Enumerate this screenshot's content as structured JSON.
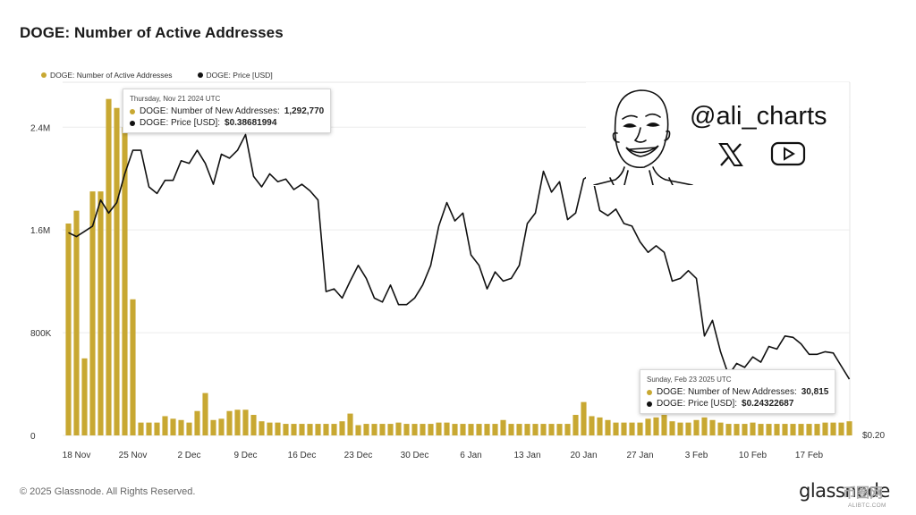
{
  "title": "DOGE: Number of Active Addresses",
  "legend": {
    "series1": "DOGE: Number of Active Addresses",
    "series2": "DOGE: Price [USD]",
    "color1": "#c8a832",
    "color2": "#111111"
  },
  "tooltip1": {
    "date": "Thursday, Nov 21 2024 UTC",
    "label1": "DOGE: Number of New Addresses:",
    "value1": "1,292,770",
    "label2": "DOGE: Price [USD]:",
    "value2": "$0.38681994"
  },
  "tooltip2": {
    "date": "Sunday, Feb 23 2025 UTC",
    "label1": "DOGE: Number of New Addresses:",
    "value1": "30,815",
    "label2": "DOGE: Price [USD]:",
    "value2": "$0.24322687"
  },
  "overlay": {
    "handle": "@ali_charts",
    "icons": [
      "caricature-face",
      "x-logo-icon",
      "youtube-icon"
    ]
  },
  "footer": {
    "copyright": "© 2025 Glassnode. All Rights Reserved.",
    "logo": "glassnode",
    "watermark": "币圈网",
    "watermark_url": "ALIBTC.COM"
  },
  "chart_data": {
    "type": "bar",
    "x_tick_labels": [
      "18 Nov",
      "25 Nov",
      "2 Dec",
      "9 Dec",
      "16 Dec",
      "23 Dec",
      "30 Dec",
      "6 Jan",
      "13 Jan",
      "20 Jan",
      "27 Jan",
      "3 Feb",
      "10 Feb",
      "17 Feb"
    ],
    "y_tick_labels": [
      "0",
      "800K",
      "1.6M",
      "2.4M"
    ],
    "y_ticks": [
      0,
      800000,
      1600000,
      2400000
    ],
    "ylim": [
      0,
      2750000
    ],
    "right_axis_label": "$0.20",
    "legend_position": "top-left",
    "grid": "horizontal",
    "bar_series": {
      "name": "DOGE: Number of Active Addresses",
      "values": [
        1650000,
        1750000,
        600000,
        1900000,
        1900000,
        2620000,
        2550000,
        2400000,
        1060000,
        100000,
        100000,
        100000,
        150000,
        130000,
        120000,
        100000,
        190000,
        330000,
        120000,
        130000,
        190000,
        200000,
        200000,
        160000,
        110000,
        100000,
        100000,
        90000,
        90000,
        90000,
        90000,
        90000,
        90000,
        90000,
        110000,
        170000,
        80000,
        90000,
        90000,
        90000,
        90000,
        100000,
        90000,
        90000,
        90000,
        90000,
        100000,
        100000,
        90000,
        90000,
        90000,
        90000,
        90000,
        90000,
        120000,
        90000,
        90000,
        90000,
        90000,
        90000,
        90000,
        90000,
        90000,
        160000,
        260000,
        150000,
        140000,
        120000,
        100000,
        100000,
        100000,
        100000,
        130000,
        140000,
        160000,
        110000,
        100000,
        100000,
        120000,
        140000,
        120000,
        100000,
        90000,
        90000,
        90000,
        100000,
        90000,
        90000,
        90000,
        90000,
        90000,
        90000,
        90000,
        90000,
        100000,
        100000,
        100000,
        110000
      ]
    },
    "line_series": {
      "name": "DOGE: Price [USD]",
      "values": [
        0.355,
        0.352,
        0.356,
        0.36,
        0.38,
        0.37,
        0.378,
        0.4,
        0.418,
        0.418,
        0.39,
        0.385,
        0.395,
        0.395,
        0.41,
        0.408,
        0.418,
        0.408,
        0.392,
        0.415,
        0.412,
        0.418,
        0.43,
        0.398,
        0.39,
        0.4,
        0.394,
        0.396,
        0.388,
        0.392,
        0.387,
        0.38,
        0.31,
        0.312,
        0.305,
        0.318,
        0.33,
        0.32,
        0.305,
        0.302,
        0.315,
        0.3,
        0.3,
        0.305,
        0.315,
        0.33,
        0.36,
        0.378,
        0.364,
        0.37,
        0.338,
        0.33,
        0.312,
        0.325,
        0.318,
        0.32,
        0.33,
        0.362,
        0.37,
        0.402,
        0.386,
        0.394,
        0.365,
        0.37,
        0.396,
        0.4,
        0.372,
        0.368,
        0.373,
        0.362,
        0.36,
        0.348,
        0.34,
        0.345,
        0.34,
        0.318,
        0.32,
        0.326,
        0.32,
        0.276,
        0.288,
        0.264,
        0.246,
        0.255,
        0.252,
        0.26,
        0.256,
        0.268,
        0.266,
        0.276,
        0.275,
        0.27,
        0.262,
        0.262,
        0.264,
        0.263,
        0.253,
        0.243
      ]
    }
  }
}
